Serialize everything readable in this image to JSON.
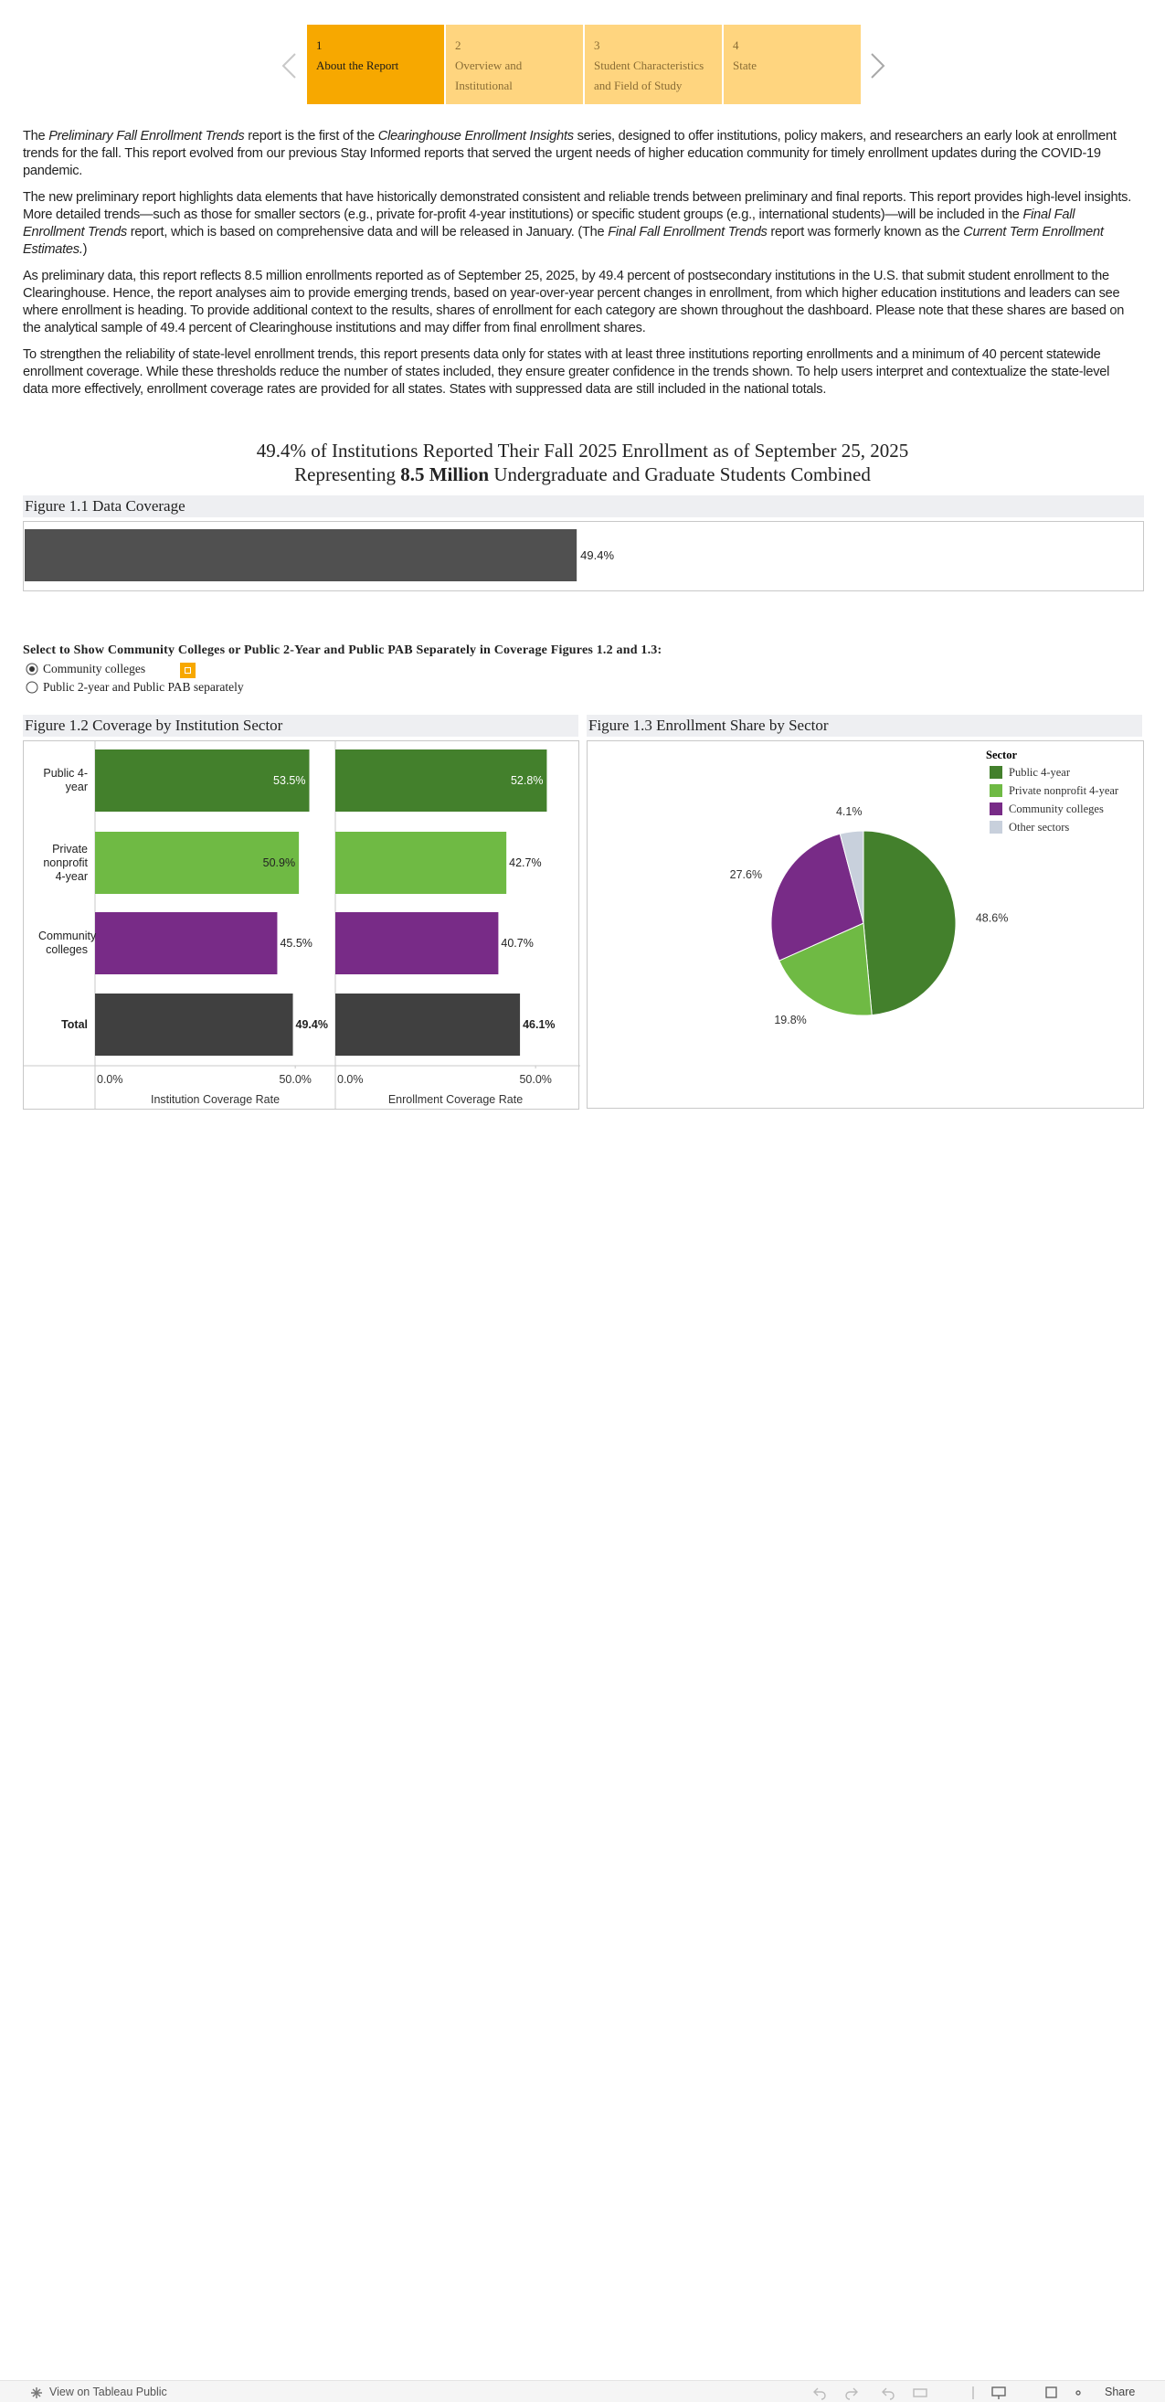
{
  "nav": {
    "tabs": [
      {
        "number": "1",
        "label": "About the Report",
        "active": true
      },
      {
        "number": "2",
        "label": "Overview and Institutional"
      },
      {
        "number": "3",
        "label": "Student Characteristics and Field of Study"
      },
      {
        "number": "4",
        "label": "State"
      }
    ]
  },
  "intro": {
    "paragraphs": [
      [
        {
          "text": "The "
        },
        {
          "text": "Preliminary Fall Enrollment Trends",
          "italic": true
        },
        {
          "text": " report is the first of the "
        },
        {
          "text": "Clearinghouse Enrollment Insights",
          "italic": true
        },
        {
          "text": " series, designed to offer institutions, policy makers, and researchers an early look at enrollment trends for the fall. This report evolved from our previous Stay Informed reports that served the urgent needs of higher education community for timely enrollment updates during the COVID-19 pandemic."
        }
      ],
      [
        {
          "text": "The new preliminary report highlights data elements that have historically demonstrated consistent and reliable trends between preliminary and final reports. This report provides high-level insights. More detailed trends—such as those for smaller sectors (e.g., private for-profit 4-year institutions) or specific student groups (e.g., international students)—will be included in the "
        },
        {
          "text": "Final Fall Enrollment Trends",
          "italic": true
        },
        {
          "text": " report, which is based on comprehensive data and will be released in January. (The "
        },
        {
          "text": "Final Fall Enrollment Trends",
          "italic": true
        },
        {
          "text": " report was formerly known as the "
        },
        {
          "text": "Current Term Enrollment Estimates.",
          "italic": true
        },
        {
          "text": ")"
        }
      ],
      [
        {
          "text": "As preliminary data, this report reflects 8.5 million enrollments reported as of September 25, 2025, by 49.4 percent of postsecondary institutions in the U.S. that submit student enrollment to the Clearinghouse. Hence, the report analyses aim to provide emerging trends, based on year-over-year percent changes in enrollment, from which higher education institutions and leaders can see where enrollment is heading. To provide additional context to the results, shares of enrollment for each category are shown throughout the dashboard. Please note that these shares are based on the analytical sample of 49.4 percent of Clearinghouse institutions and may differ from final enrollment shares."
        }
      ],
      [
        {
          "text": "To strengthen the reliability of state-level enrollment trends, this report presents data only for states with at least three institutions reporting enrollments and a minimum of 40 percent statewide enrollment coverage. While these thresholds reduce the number of states included, they ensure greater confidence in the trends shown. To help users interpret and contextualize the state-level data more effectively, enrollment coverage rates are provided for all states. States with suppressed data are still included in the national totals."
        }
      ]
    ]
  },
  "headline": {
    "lines": [
      [
        {
          "text": "49.4% of Institutions Reported Their Fall 2025 Enrollment as of September 25, 2025"
        }
      ],
      [
        {
          "text": "Representing "
        },
        {
          "text": "8.5 Million",
          "bold": true
        },
        {
          "text": " Undergraduate and Graduate Students Combined"
        }
      ]
    ]
  },
  "selector": {
    "title": "Select to Show Community Colleges or Public 2-Year and Public PAB Separately in Coverage Figures 1.2 and 1.3:",
    "options": [
      "Community colleges",
      "Public 2-year and Public PAB separately"
    ],
    "selected": 0
  },
  "chart_data": [
    {
      "type": "bar",
      "title": "Figure 1.1 Data Coverage",
      "values": [
        49.4
      ],
      "value_labels": [
        "49.4%"
      ],
      "color": "#505050",
      "xlim": [
        0,
        100
      ]
    },
    {
      "type": "panel-bars",
      "title": "Figure 1.2 Coverage by Institution Sector",
      "categories": [
        "Public 4-year",
        "Private nonprofit 4-year",
        "Community colleges",
        "Total"
      ],
      "colors": [
        "#43802c",
        "#6fba44",
        "#782b87",
        "#404040"
      ],
      "xlim": [
        0,
        60
      ],
      "xticks": [
        {
          "value": 0,
          "label": "0.0%"
        },
        {
          "value": 50,
          "label": "50.0%"
        }
      ],
      "panels": [
        {
          "xlabel": "Institution Coverage Rate",
          "values": [
            53.5,
            50.9,
            45.5,
            49.4
          ],
          "value_labels": [
            "53.5%",
            "50.9%",
            "45.5%",
            "49.4%"
          ]
        },
        {
          "xlabel": "Enrollment Coverage Rate",
          "values": [
            52.8,
            42.7,
            40.7,
            46.1
          ],
          "value_labels": [
            "52.8%",
            "42.7%",
            "40.7%",
            "46.1%"
          ]
        }
      ]
    },
    {
      "type": "pie",
      "title": "Figure 1.3 Enrollment Share by Sector",
      "legend_title": "Sector",
      "categories": [
        "Public 4-year",
        "Private nonprofit 4-year",
        "Community colleges",
        "Other sectors"
      ],
      "values": [
        48.6,
        19.8,
        27.6,
        4.1
      ],
      "value_labels": [
        "48.6%",
        "19.8%",
        "27.6%",
        "4.1%"
      ],
      "colors": [
        "#43802c",
        "#6fba44",
        "#782b87",
        "#c8d0dc"
      ]
    }
  ],
  "footer": {
    "left": "View on Tableau Public",
    "right": "Share"
  }
}
